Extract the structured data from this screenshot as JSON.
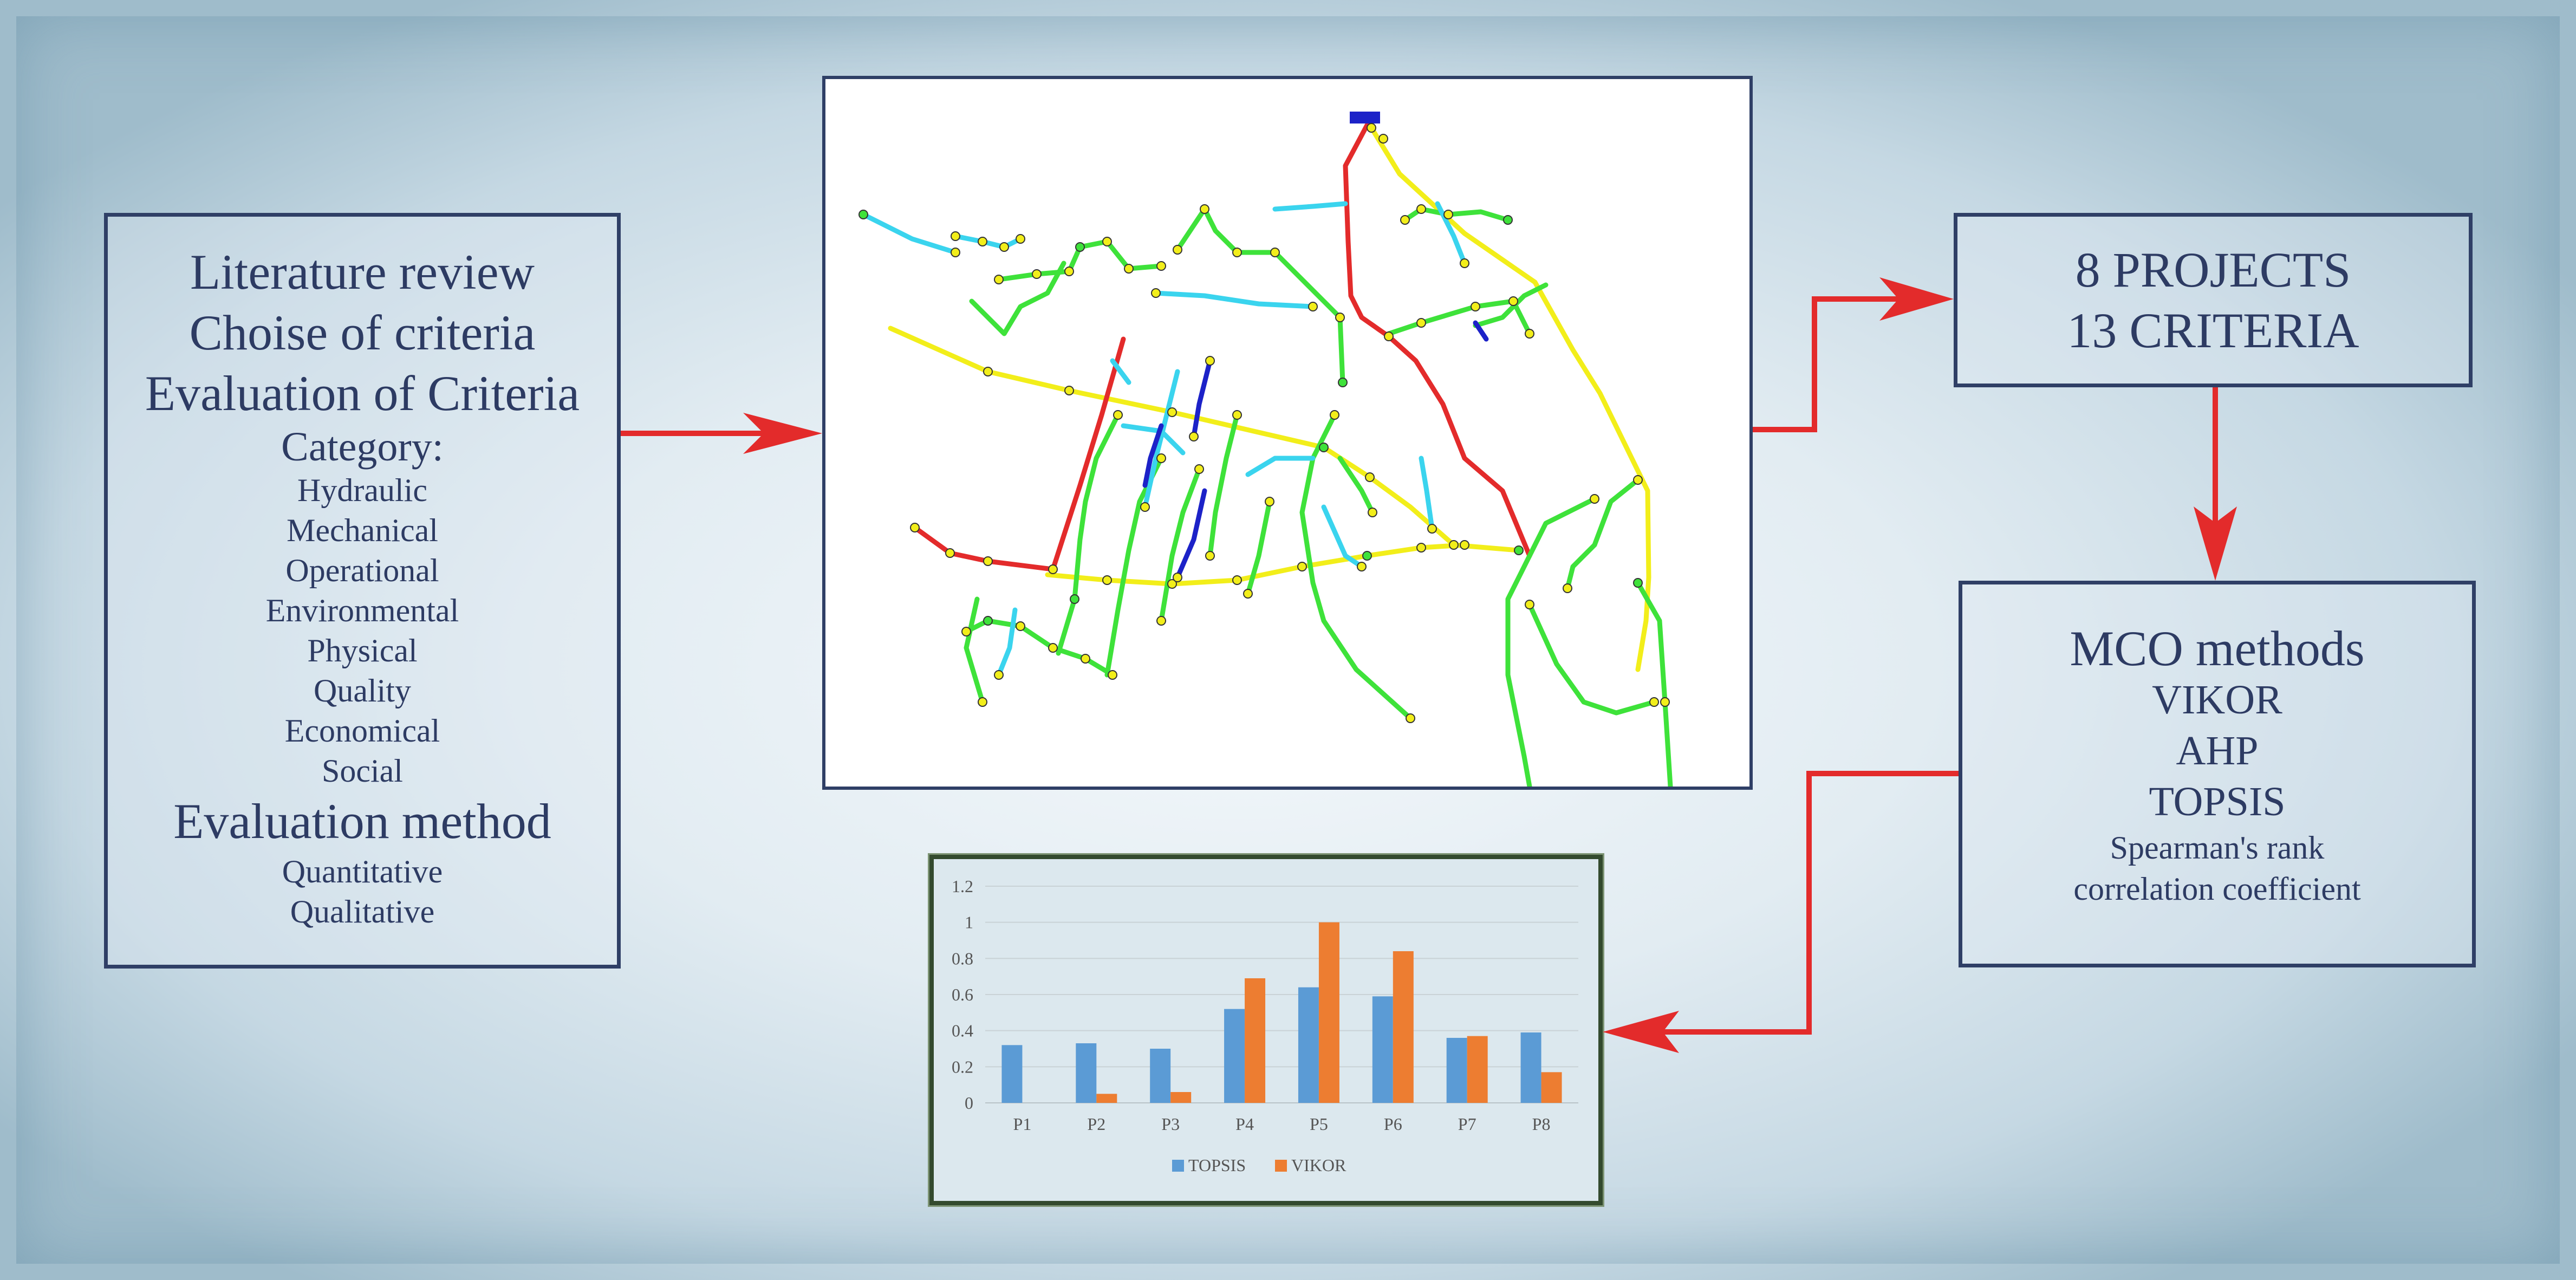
{
  "left_box": {
    "title_lines": [
      "Literature review",
      "Choise of criteria",
      "Evaluation of Criteria"
    ],
    "category_heading": "Category:",
    "categories": [
      "Hydraulic",
      "Mechanical",
      "Operational",
      "Environmental",
      "Physical",
      "Quality",
      "Economical",
      "Social"
    ],
    "method_heading": "Evaluation method",
    "methods": [
      "Quantitative",
      "Qualitative"
    ]
  },
  "projects_box": {
    "line1": "8 PROJECTS",
    "line2": "13 CRITERIA"
  },
  "methods_box": {
    "title": "MCO methods",
    "methods": [
      "VIKOR",
      "AHP",
      "TOPSIS"
    ],
    "note_lines": [
      "Spearman's rank",
      "correlation coefficient"
    ]
  },
  "colors": {
    "arrow": "#e32b2b",
    "box_border": "#2f3f66",
    "text": "#2d3b63",
    "pipe_red": "#e32b2b",
    "pipe_yellow": "#f2ee1a",
    "pipe_green": "#3ee23a",
    "pipe_cyan": "#3ad4ee",
    "pipe_blue": "#1c22c8",
    "topsis": "#5b9bd5",
    "vikor": "#ed7d31"
  },
  "chart_data": {
    "type": "bar",
    "categories": [
      "P1",
      "P2",
      "P3",
      "P4",
      "P5",
      "P6",
      "P7",
      "P8"
    ],
    "series": [
      {
        "name": "TOPSIS",
        "values": [
          0.32,
          0.33,
          0.3,
          0.52,
          0.64,
          0.59,
          0.36,
          0.39
        ]
      },
      {
        "name": "VIKOR",
        "values": [
          0.0,
          0.05,
          0.06,
          0.69,
          1.0,
          0.84,
          0.37,
          0.17
        ]
      }
    ],
    "ylim": [
      0,
      1.2
    ],
    "yticks": [
      "0",
      "0.2",
      "0.4",
      "0.6",
      "0.8",
      "1",
      "1.2"
    ],
    "grid": true,
    "legend": "bottom"
  }
}
